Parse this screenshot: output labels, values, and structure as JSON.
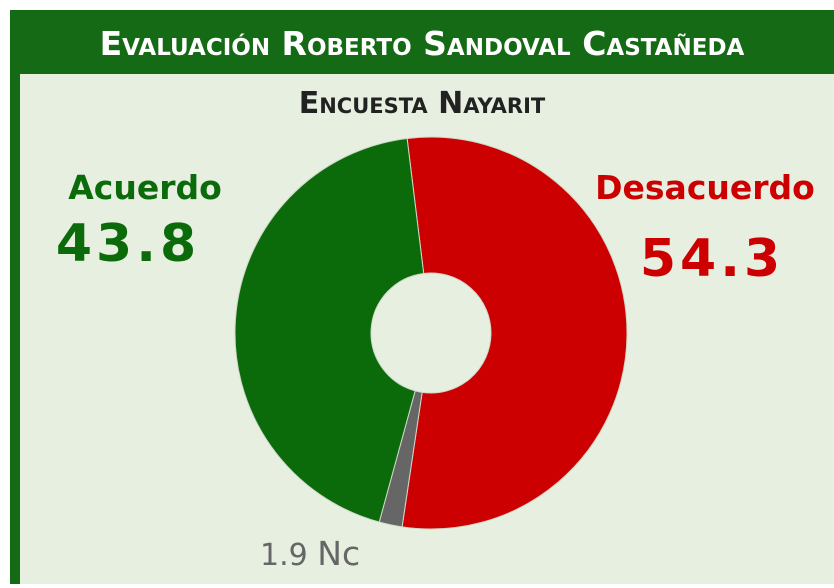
{
  "chart_data": {
    "type": "donut",
    "title": "Evaluación Roberto Sandoval Castañeda",
    "subtitle": "Encuesta Nayarit",
    "categories": [
      "Desacuerdo",
      "Nc",
      "Acuerdo"
    ],
    "values": [
      54.3,
      1.9,
      43.8
    ],
    "colors": [
      "#cc0000",
      "#666666",
      "#0b6b0b"
    ]
  }
}
